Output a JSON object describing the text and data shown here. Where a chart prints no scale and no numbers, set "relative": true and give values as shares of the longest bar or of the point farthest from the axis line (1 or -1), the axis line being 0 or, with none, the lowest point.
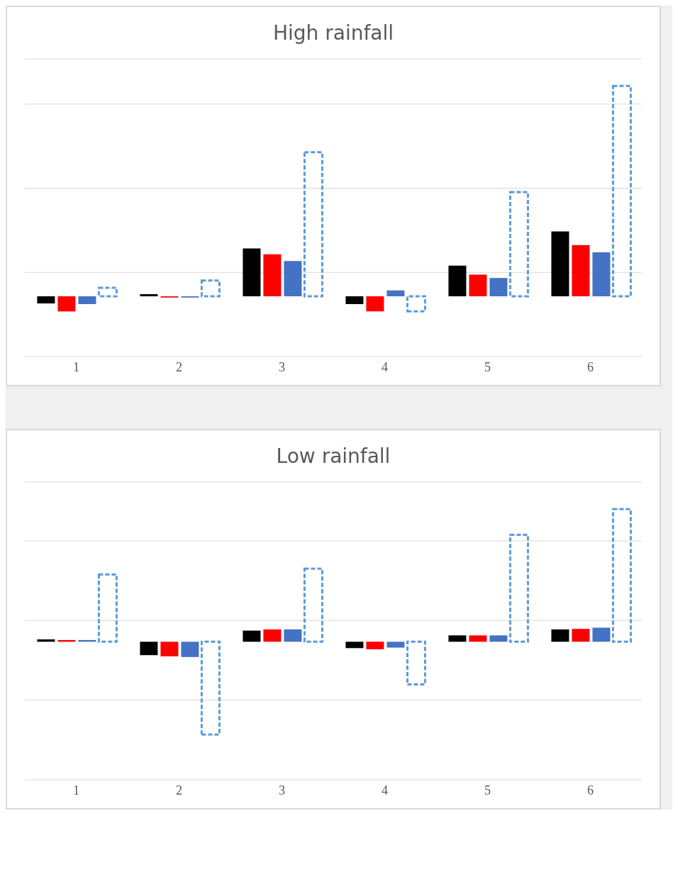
{
  "chart_data": [
    {
      "type": "bar",
      "title": "High rainfall",
      "categories": [
        "1",
        "2",
        "3",
        "4",
        "5",
        "6"
      ],
      "relative": true,
      "grid": "y",
      "legend": false,
      "series": [
        {
          "color": "#000000",
          "values": [
            -0.034,
            0.01,
            0.227,
            -0.037,
            0.146,
            0.308
          ]
        },
        {
          "color": "#ff0000",
          "values": [
            -0.072,
            -0.006,
            0.2,
            -0.072,
            0.103,
            0.243
          ]
        },
        {
          "color": "#4472c4",
          "values": [
            -0.037,
            -0.006,
            0.168,
            0.028,
            0.087,
            0.209
          ]
        },
        {
          "color": "#5b9bd5",
          "line_style": "dashed",
          "values": [
            0.04,
            0.075,
            0.685,
            -0.072,
            0.495,
            1
          ]
        }
      ]
    },
    {
      "type": "bar",
      "title": "Low rainfall",
      "categories": [
        "1",
        "2",
        "3",
        "4",
        "5",
        "6"
      ],
      "relative": true,
      "grid": "y",
      "legend": false,
      "series": [
        {
          "color": "#000000",
          "values": [
            0.018,
            -0.101,
            0.084,
            -0.048,
            0.048,
            0.093
          ]
        },
        {
          "color": "#ff0000",
          "values": [
            0.013,
            -0.11,
            0.093,
            -0.057,
            0.048,
            0.097
          ]
        },
        {
          "color": "#4472c4",
          "values": [
            0.013,
            -0.115,
            0.093,
            -0.044,
            0.048,
            0.106
          ]
        },
        {
          "color": "#5b9bd5",
          "line_style": "dashed",
          "values": [
            0.507,
            -0.7,
            0.551,
            -0.322,
            0.806,
            1
          ]
        }
      ]
    }
  ]
}
